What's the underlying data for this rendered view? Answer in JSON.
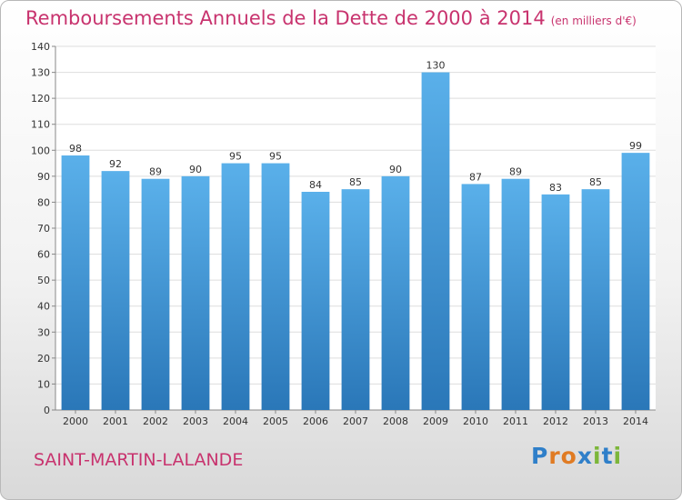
{
  "header": {
    "title": "Remboursements Annuels de la Dette de 2000 à 2014",
    "unit": "(en milliers d'€)"
  },
  "footer": {
    "commune": "SAINT-MARTIN-LALANDE",
    "brand": "Proxiti"
  },
  "colors": {
    "accent": "#c8336e",
    "bar_top": "#5ab0ea",
    "bar_bottom": "#2a77b8"
  },
  "chart_data": {
    "type": "bar",
    "categories": [
      "2000",
      "2001",
      "2002",
      "2003",
      "2004",
      "2005",
      "2006",
      "2007",
      "2008",
      "2009",
      "2010",
      "2011",
      "2012",
      "2013",
      "2014"
    ],
    "values": [
      98,
      92,
      89,
      90,
      95,
      95,
      84,
      85,
      90,
      130,
      87,
      89,
      83,
      85,
      99
    ],
    "title": "Remboursements Annuels de la Dette de 2000 à 2014",
    "xlabel": "",
    "ylabel": "",
    "ylim": [
      0,
      140
    ],
    "yticks": [
      0,
      10,
      20,
      30,
      40,
      50,
      60,
      70,
      80,
      90,
      100,
      110,
      120,
      130,
      140
    ],
    "grid": true,
    "data_labels": true
  }
}
